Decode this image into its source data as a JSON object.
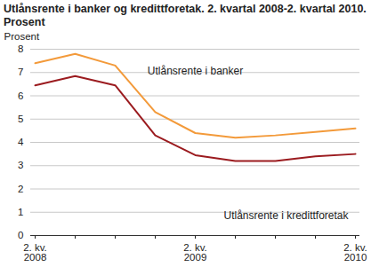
{
  "chart_data": {
    "type": "line",
    "title": "Utlånsrente i banker og kredittforetak. 2. kvartal 2008-2. kvartal 2010. Prosent",
    "y_label": "Prosent",
    "categories": [
      "2. kv.\n2008",
      null,
      null,
      null,
      "2. kv.\n2009",
      null,
      null,
      null,
      "2. kv.\n2010"
    ],
    "series": [
      {
        "name": "Utlånsrente i banker",
        "color": "#f39a3a",
        "values": [
          7.4,
          7.8,
          7.3,
          5.3,
          4.4,
          4.2,
          4.3,
          4.45,
          4.6
        ]
      },
      {
        "name": "Utlånsrente i kredittforetak",
        "color": "#9b1b1f",
        "values": [
          6.45,
          6.85,
          6.45,
          4.3,
          3.45,
          3.2,
          3.2,
          3.4,
          3.5
        ]
      }
    ],
    "ylim": [
      0,
      8
    ],
    "yticks": [
      0,
      1,
      2,
      3,
      4,
      5,
      6,
      7,
      8
    ],
    "grid": true
  }
}
